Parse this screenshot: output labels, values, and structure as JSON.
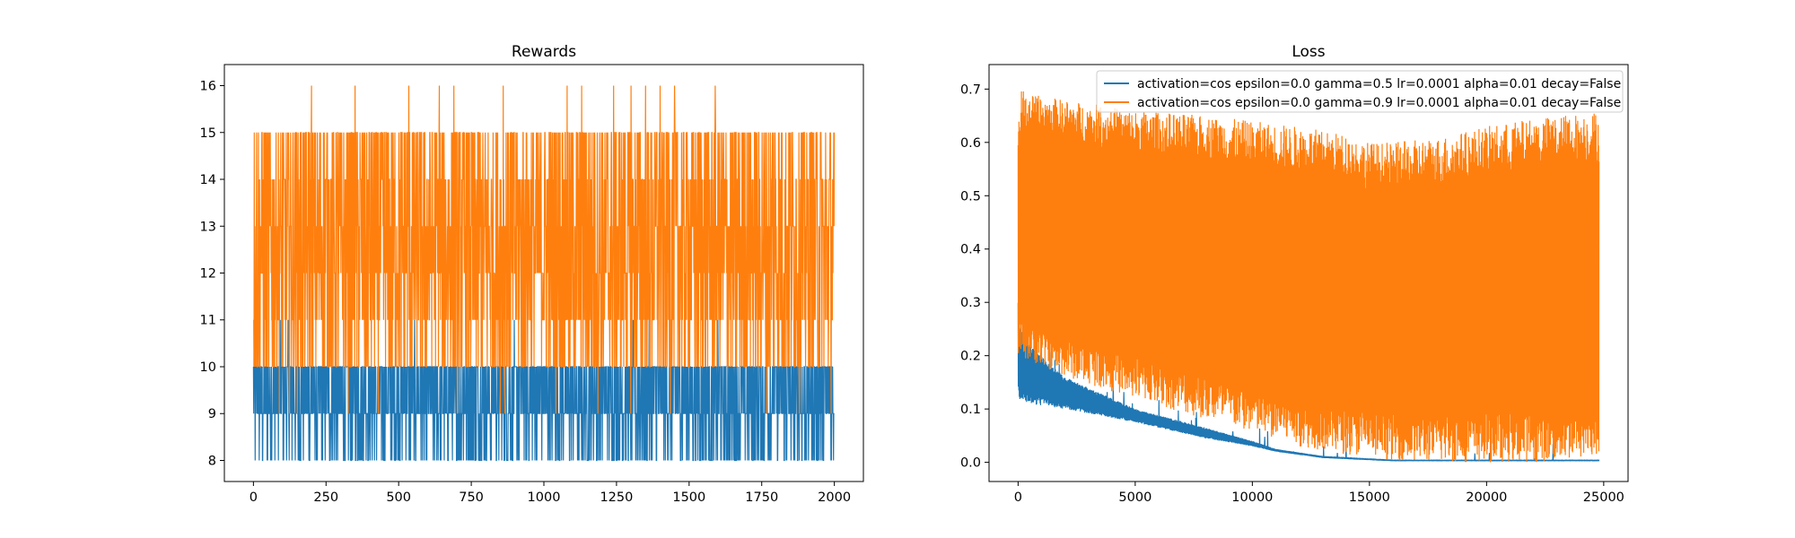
{
  "chart_data": [
    {
      "type": "line",
      "title": "Rewards",
      "xlabel": "",
      "ylabel": "",
      "xlim": [
        -100,
        2100
      ],
      "ylim": [
        7.55,
        16.45
      ],
      "xticks": [
        0,
        250,
        500,
        750,
        1000,
        1250,
        1500,
        1750,
        2000
      ],
      "xtick_labels": [
        "0",
        "250",
        "500",
        "750",
        "1000",
        "1250",
        "1500",
        "1750",
        "2000"
      ],
      "yticks": [
        8,
        9,
        10,
        11,
        12,
        13,
        14,
        15,
        16
      ],
      "ytick_labels": [
        "8",
        "9",
        "10",
        "11",
        "12",
        "13",
        "14",
        "15",
        "16"
      ],
      "x_range": [
        0,
        2000
      ],
      "series": [
        {
          "color": "#1f77b4",
          "min": 8,
          "max": 11,
          "dominant": [
            9,
            10
          ],
          "note_values": "noisy episode rewards between 8 and 11, mostly 9-10"
        },
        {
          "color": "#ff7f0e",
          "min": 9,
          "max": 16,
          "dominant": [
            10,
            15
          ],
          "spike_x": [
            200,
            350,
            535,
            640,
            690,
            860,
            1080,
            1130,
            1240,
            1300,
            1350,
            1400,
            1450,
            1590
          ]
        }
      ]
    },
    {
      "type": "line",
      "title": "Loss",
      "xlabel": "",
      "ylabel": "",
      "xlim": [
        -1240,
        26040
      ],
      "ylim": [
        -0.036,
        0.746
      ],
      "xticks": [
        0,
        5000,
        10000,
        15000,
        20000,
        25000
      ],
      "xtick_labels": [
        "0",
        "5000",
        "10000",
        "15000",
        "20000",
        "25000"
      ],
      "yticks": [
        0.0,
        0.1,
        0.2,
        0.3,
        0.4,
        0.5,
        0.6,
        0.7
      ],
      "ytick_labels": [
        "0.0",
        "0.1",
        "0.2",
        "0.3",
        "0.4",
        "0.5",
        "0.6",
        "0.7"
      ],
      "legend_position": "top-right",
      "series": [
        {
          "name": "activation=cos epsilon=0.0 gamma=0.5 lr=0.0001 alpha=0.01 decay=False",
          "color": "#1f77b4",
          "x_range": [
            0,
            24800
          ],
          "upper_envelope": {
            "x": [
              0,
              100,
              500,
              2000,
              5000,
              8000,
              10000,
              11000,
              13000,
              16000,
              24800
            ],
            "y": [
              0.3,
              0.25,
              0.22,
              0.16,
              0.1,
              0.065,
              0.04,
              0.025,
              0.012,
              0.005,
              0.005
            ]
          },
          "lower_envelope": {
            "x": [
              0,
              500,
              2000,
              5000,
              8000,
              10000,
              11000,
              13000,
              16000,
              24800
            ],
            "y": [
              0.12,
              0.11,
              0.1,
              0.075,
              0.045,
              0.03,
              0.02,
              0.008,
              0.002,
              0.002
            ]
          }
        },
        {
          "name": "activation=cos epsilon=0.0 gamma=0.9 lr=0.0001 alpha=0.01 decay=False",
          "color": "#ff7f0e",
          "x_range": [
            0,
            24800
          ],
          "upper_envelope": {
            "x": [
              0,
              150,
              500,
              2000,
              5000,
              8000,
              10000,
              12000,
              14000,
              15000,
              16000,
              18000,
              20000,
              22000,
              24800
            ],
            "y": [
              0.64,
              0.7,
              0.69,
              0.68,
              0.66,
              0.65,
              0.64,
              0.63,
              0.615,
              0.6,
              0.6,
              0.61,
              0.63,
              0.645,
              0.66
            ]
          },
          "lower_envelope": {
            "x": [
              0,
              2000,
              5000,
              8000,
              10000,
              12000,
              14000,
              16000,
              18000,
              20000,
              22000,
              24000,
              24800
            ],
            "y": [
              0.2,
              0.16,
              0.12,
              0.08,
              0.055,
              0.03,
              0.015,
              0.004,
              0.0,
              0.0,
              0.0,
              0.005,
              0.01
            ]
          }
        }
      ]
    }
  ]
}
